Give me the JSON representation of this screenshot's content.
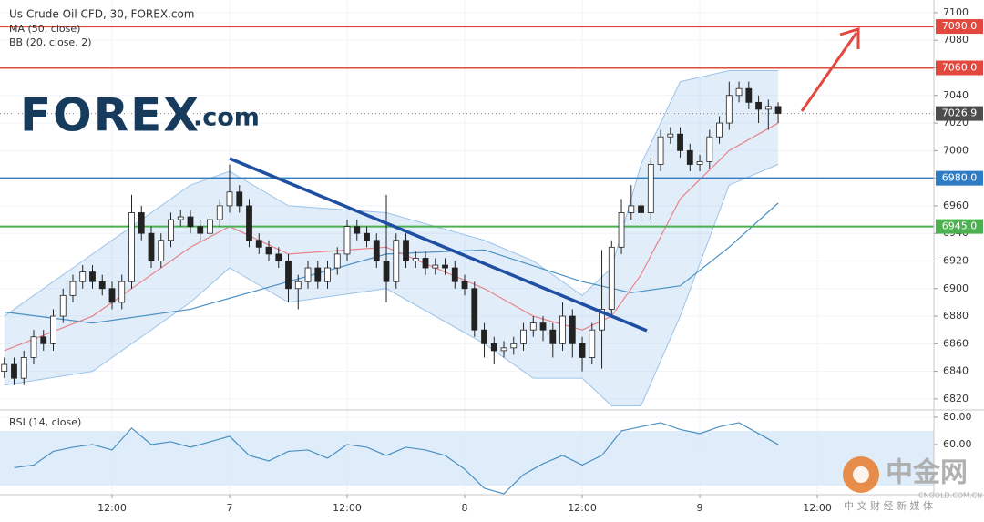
{
  "chart_data": {
    "type": "candlestick",
    "title": "Us Crude Oil CFD, 30, FOREX.com",
    "x": [
      1,
      2,
      3,
      4,
      5,
      6,
      7,
      8,
      9,
      10,
      11,
      12,
      13,
      14,
      15,
      16,
      17,
      18,
      19,
      20,
      21,
      22,
      23,
      24,
      25,
      26,
      27,
      28,
      29,
      30,
      31,
      32,
      33,
      34,
      35,
      36,
      37,
      38,
      39,
      40,
      41,
      42,
      43,
      44,
      45,
      46,
      47,
      48,
      49,
      50,
      51,
      52,
      53,
      54,
      55,
      56,
      57,
      58,
      59,
      60,
      61,
      62,
      63,
      64,
      65,
      66,
      67,
      68,
      69,
      70,
      71,
      72,
      73,
      74,
      75,
      76,
      77,
      78,
      79,
      80
    ],
    "open": [
      6840,
      6845,
      6835,
      6850,
      6865,
      6860,
      6880,
      6895,
      6905,
      6912,
      6905,
      6900,
      6890,
      6905,
      6955,
      6940,
      6920,
      6935,
      6950,
      6952,
      6945,
      6940,
      6950,
      6960,
      6970,
      6960,
      6935,
      6930,
      6925,
      6920,
      6900,
      6905,
      6915,
      6905,
      6915,
      6925,
      6945,
      6940,
      6935,
      6920,
      6905,
      6935,
      6920,
      6922,
      6915,
      6917,
      6915,
      6905,
      6900,
      6870,
      6860,
      6855,
      6857,
      6860,
      6870,
      6875,
      6870,
      6860,
      6880,
      6860,
      6850,
      6870,
      6885,
      6930,
      6955,
      6960,
      6955,
      6990,
      7010,
      7012,
      7000,
      6990,
      6992,
      7010,
      7020,
      7040,
      7045,
      7035,
      7030,
      7032
    ],
    "high": [
      6850,
      6850,
      6855,
      6870,
      6870,
      6885,
      6900,
      6910,
      6917,
      6917,
      6910,
      6905,
      6910,
      6968,
      6960,
      6945,
      6940,
      6955,
      6957,
      6957,
      6950,
      6955,
      6965,
      6990,
      6975,
      6965,
      6940,
      6935,
      6930,
      6925,
      6910,
      6920,
      6920,
      6920,
      6930,
      6950,
      6950,
      6945,
      6940,
      6968,
      6940,
      6940,
      6927,
      6927,
      6922,
      6922,
      6920,
      6910,
      6905,
      6875,
      6865,
      6862,
      6865,
      6875,
      6880,
      6880,
      6875,
      6890,
      6885,
      6865,
      6875,
      6928,
      6935,
      6965,
      6975,
      6965,
      6995,
      7015,
      7017,
      7017,
      7005,
      6997,
      7015,
      7025,
      7050,
      7050,
      7050,
      7040,
      7037,
      7035
    ],
    "low": [
      6835,
      6830,
      6830,
      6845,
      6855,
      6855,
      6875,
      6890,
      6900,
      6900,
      6895,
      6885,
      6885,
      6900,
      6935,
      6915,
      6915,
      6930,
      6945,
      6940,
      6935,
      6935,
      6945,
      6955,
      6955,
      6930,
      6925,
      6920,
      6915,
      6890,
      6885,
      6900,
      6900,
      6900,
      6910,
      6920,
      6935,
      6930,
      6915,
      6890,
      6900,
      6915,
      6915,
      6910,
      6910,
      6910,
      6900,
      6895,
      6865,
      6850,
      6845,
      6850,
      6852,
      6855,
      6865,
      6862,
      6850,
      6855,
      6850,
      6840,
      6845,
      6842,
      6880,
      6925,
      6950,
      6948,
      6950,
      6985,
      7005,
      6995,
      6985,
      6985,
      6987,
      7005,
      7015,
      7035,
      7030,
      7020,
      7015,
      7020
    ],
    "close": [
      6845,
      6835,
      6850,
      6865,
      6860,
      6880,
      6895,
      6905,
      6912,
      6905,
      6900,
      6890,
      6905,
      6955,
      6940,
      6920,
      6935,
      6950,
      6952,
      6945,
      6940,
      6950,
      6960,
      6970,
      6960,
      6935,
      6930,
      6925,
      6920,
      6900,
      6905,
      6915,
      6905,
      6915,
      6925,
      6945,
      6940,
      6935,
      6920,
      6905,
      6935,
      6920,
      6922,
      6915,
      6917,
      6915,
      6905,
      6900,
      6870,
      6860,
      6855,
      6857,
      6860,
      6870,
      6875,
      6870,
      6860,
      6880,
      6860,
      6850,
      6870,
      6885,
      6930,
      6955,
      6960,
      6955,
      6990,
      7010,
      7012,
      7000,
      6990,
      6992,
      7010,
      7020,
      7040,
      7045,
      7035,
      7030,
      7032,
      7027
    ],
    "up_color": "#ffffff",
    "down_color": "#222222",
    "xlim": [
      0.56,
      95.9
    ],
    "xticks": [
      {
        "value": 12,
        "label": "12:00"
      },
      {
        "value": 24,
        "label": "7"
      },
      {
        "value": 36,
        "label": "12:00"
      },
      {
        "value": 48,
        "label": "8"
      },
      {
        "value": 60,
        "label": "12:00"
      },
      {
        "value": 72,
        "label": "9"
      },
      {
        "value": 84,
        "label": "12:00"
      }
    ],
    "ylim": [
      6812,
      7109.2
    ],
    "yticks": [
      6820,
      6840,
      6860,
      6880,
      6900,
      6920,
      6940,
      6960,
      6980,
      7000,
      7020,
      7040,
      7060,
      7080,
      7100
    ],
    "grid": true,
    "overlays": [
      {
        "name": "MA (50, close)",
        "color": "#4a90c2",
        "x": [
          1,
          10,
          20,
          30,
          40,
          50,
          60,
          65,
          70,
          75,
          80
        ],
        "values": [
          6883,
          6875,
          6885,
          6905,
          6925,
          6928,
          6905,
          6897,
          6902,
          6930,
          6962
        ]
      },
      {
        "name": "BB (20, close, 2)",
        "color": "#e8838a",
        "band_color": "#9cc3ea",
        "x": [
          1,
          10,
          20,
          24,
          30,
          40,
          50,
          55,
          60,
          63,
          66,
          70,
          75,
          80
        ],
        "values": [
          6855,
          6880,
          6930,
          6945,
          6925,
          6930,
          6900,
          6880,
          6870,
          6880,
          6910,
          6965,
          7000,
          7020
        ],
        "upper": [
          6880,
          6925,
          6975,
          6985,
          6960,
          6955,
          6935,
          6920,
          6895,
          6915,
          6990,
          7050,
          7058,
          7058
        ],
        "lower": [
          6830,
          6840,
          6890,
          6915,
          6890,
          6900,
          6860,
          6835,
          6835,
          6815,
          6815,
          6880,
          6975,
          6990
        ]
      }
    ],
    "levels": [
      {
        "value": 7090,
        "label": "7090.0",
        "color": "#e2483d"
      },
      {
        "value": 7060,
        "label": "7060.0",
        "color": "#e2483d"
      },
      {
        "value": 6980,
        "label": "6980.0",
        "color": "#2f7cc4"
      },
      {
        "value": 6945,
        "label": "6945.0",
        "color": "#4caf50"
      }
    ],
    "last_price": {
      "value": 7026.9,
      "label": "7026.9"
    },
    "rsi": {
      "name": "RSI (14, close)",
      "color": "#4a90c2",
      "x": [
        2,
        4,
        6,
        8,
        10,
        12,
        14,
        16,
        18,
        20,
        22,
        24,
        26,
        28,
        30,
        32,
        34,
        36,
        38,
        40,
        42,
        44,
        46,
        48,
        50,
        52,
        54,
        56,
        58,
        60,
        62,
        64,
        66,
        68,
        70,
        72,
        74,
        76,
        78,
        80
      ],
      "values": [
        43,
        45,
        55,
        58,
        60,
        56,
        72,
        60,
        62,
        58,
        62,
        66,
        52,
        48,
        55,
        56,
        50,
        60,
        58,
        52,
        58,
        56,
        52,
        42,
        28,
        24,
        38,
        46,
        52,
        45,
        52,
        70,
        73,
        76,
        71,
        68,
        73,
        76,
        68,
        60
      ],
      "ylim": [
        23.3,
        85.3
      ],
      "yticks": [
        {
          "value": 80,
          "label": "80.00"
        },
        {
          "value": 60,
          "label": "60.00"
        }
      ],
      "band": [
        30,
        70
      ],
      "band_color": "#d7e8fa"
    }
  },
  "logo": {
    "brand": "FOREX",
    "suffix": ".com"
  },
  "watermark": {
    "name": "中金网",
    "url": "CNGOLD.COM.CN",
    "tagline": "中 文 财 经 新 媒 体"
  }
}
